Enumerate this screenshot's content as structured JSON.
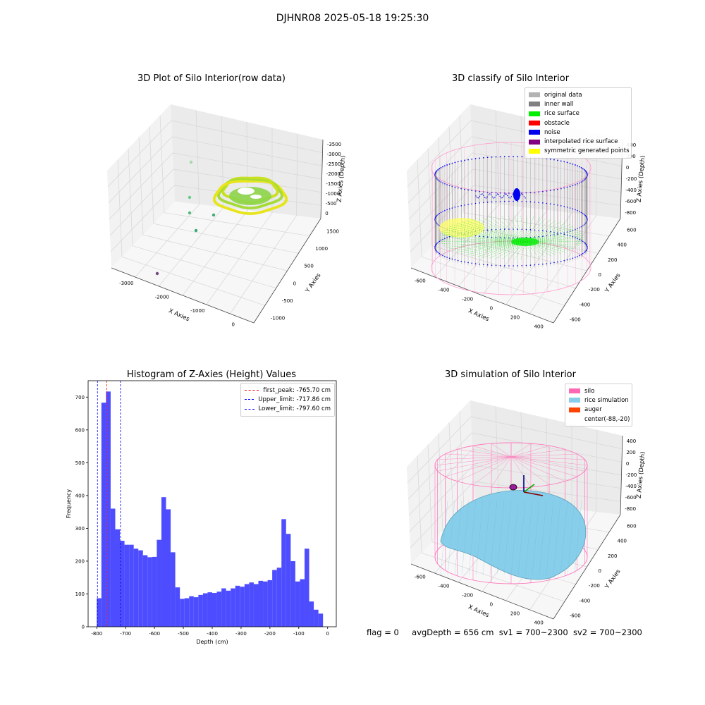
{
  "figure": {
    "suptitle": "DJHNR08 2025-05-18 19:25:30",
    "status": {
      "flag": "flag = 0",
      "avg_depth": "avgDepth = 656 cm",
      "sv1": "sv1 = 700~2300",
      "sv2": "sv2 = 700~2300"
    }
  },
  "chart_data": [
    {
      "type": "scatter",
      "subtype": "3d",
      "title": "3D Plot of Silo Interior(row data)",
      "xlabel": "X Axies",
      "ylabel": "Y Axies",
      "zlabel": "Z Axies (Depth)",
      "x_ticks": [
        "-3000",
        "-2000",
        "-1000",
        "0"
      ],
      "y_ticks": [
        "-1000",
        "-500",
        "0",
        "500",
        "1000",
        "1500"
      ],
      "z_ticks": [
        "0",
        "-500",
        "-1000",
        "-1500",
        "-2000",
        "-2500",
        "-3000",
        "-3500"
      ],
      "colormap": "viridis"
    },
    {
      "type": "scatter",
      "subtype": "3d",
      "title": "3D classify of Silo Interior",
      "xlabel": "X Axies",
      "ylabel": "Y Axies",
      "zlabel": "Z Axies (Depth)",
      "x_ticks": [
        "-600",
        "-400",
        "-200",
        "0",
        "200",
        "400"
      ],
      "y_ticks": [
        "-600",
        "-400",
        "-200",
        "0",
        "200",
        "400",
        "600"
      ],
      "z_ticks": [
        "-800",
        "-600",
        "-400",
        "-200",
        "0",
        "200",
        "400"
      ],
      "legend_position": "top-right",
      "legend": [
        {
          "label": "original data",
          "color": "#b3b3b3"
        },
        {
          "label": "inner wall",
          "color": "#808080"
        },
        {
          "label": "rice surface",
          "color": "#00ee00"
        },
        {
          "label": "obstacle",
          "color": "#ff0000"
        },
        {
          "label": "noise",
          "color": "#0000ee"
        },
        {
          "label": "interpolated rice surface",
          "color": "#800080"
        },
        {
          "label": "symmetric generated points",
          "color": "#ffff00"
        }
      ],
      "colors": {
        "silo_wire": "#ff99cc",
        "wall_line": "#888888"
      }
    },
    {
      "type": "bar",
      "subtype": "histogram",
      "title": "Histogram of Z-Axies (Height) Values",
      "xlabel": "Depth (cm)",
      "ylabel": "Frequency",
      "xlim": [
        -830,
        30
      ],
      "ylim": [
        0,
        750
      ],
      "x_ticks": [
        -800,
        -700,
        -600,
        -500,
        -400,
        -300,
        -200,
        -100,
        0
      ],
      "y_ticks": [
        0,
        100,
        200,
        300,
        400,
        500,
        600,
        700
      ],
      "bin_start": -800,
      "bin_width": 16,
      "color": "#4d4dff",
      "values": [
        87,
        683,
        717,
        360,
        297,
        262,
        250,
        250,
        238,
        233,
        218,
        212,
        213,
        265,
        395,
        358,
        227,
        120,
        85,
        87,
        93,
        90,
        97,
        102,
        105,
        103,
        107,
        117,
        110,
        117,
        125,
        122,
        130,
        135,
        130,
        140,
        138,
        142,
        173,
        180,
        328,
        283,
        200,
        138,
        145,
        238,
        77,
        52,
        40
      ],
      "vlines": [
        {
          "label": "first_peak: -765.70 cm",
          "x": -765.7,
          "color": "#ff0000"
        },
        {
          "label": "Upper_limit: -717.86 cm",
          "x": -717.86,
          "color": "#0000ff"
        },
        {
          "label": "Lower_limit: -797.60 cm",
          "x": -797.6,
          "color": "#0000ff"
        }
      ],
      "legend_position": "top-right"
    },
    {
      "type": "area",
      "subtype": "3d-surface",
      "title": "3D simulation of Silo Interior",
      "xlabel": "X Axies",
      "ylabel": "Y Axies",
      "zlabel": "Z Axies (Depth)",
      "x_ticks": [
        "-600",
        "-400",
        "-200",
        "0",
        "200",
        "400"
      ],
      "y_ticks": [
        "-600",
        "-400",
        "-200",
        "0",
        "200",
        "400",
        "600"
      ],
      "z_ticks": [
        "-800",
        "-600",
        "-400",
        "-200",
        "0",
        "200",
        "400"
      ],
      "legend_position": "top-right",
      "legend": [
        {
          "label": "silo",
          "color": "#ff69b4"
        },
        {
          "label": "rice simulation",
          "color": "#87ceeb"
        },
        {
          "label": "auger",
          "color": "#ff4500"
        },
        {
          "label": "center(-88,-20)",
          "color": ""
        }
      ]
    }
  ]
}
